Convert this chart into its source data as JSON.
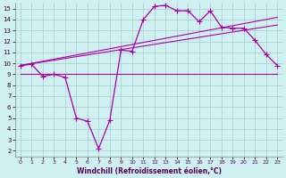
{
  "bg_color": "#cff0f0",
  "grid_color": "#aacccc",
  "line_color": "#aa00aa",
  "xlabel": "Windchill (Refroidissement éolien,°C)",
  "xlim": [
    -0.5,
    23.5
  ],
  "ylim": [
    1.5,
    15.5
  ],
  "xticks": [
    0,
    1,
    2,
    3,
    4,
    5,
    6,
    7,
    8,
    9,
    10,
    11,
    12,
    13,
    14,
    15,
    16,
    17,
    18,
    19,
    20,
    21,
    22,
    23
  ],
  "yticks": [
    2,
    3,
    4,
    5,
    6,
    7,
    8,
    9,
    10,
    11,
    12,
    13,
    14,
    15
  ],
  "flat_line_x": [
    0,
    23
  ],
  "flat_line_y": [
    9.0,
    9.0
  ],
  "reg_line1_x": [
    0,
    23
  ],
  "reg_line1_y": [
    9.8,
    13.5
  ],
  "reg_line2_x": [
    0,
    23
  ],
  "reg_line2_y": [
    9.8,
    14.2
  ],
  "curve_x": [
    0,
    1,
    2,
    3,
    4,
    5,
    6,
    7,
    8,
    9,
    10,
    11,
    12,
    13,
    14,
    15,
    16,
    17,
    18,
    19,
    20,
    21,
    22,
    23
  ],
  "curve_y": [
    9.8,
    9.9,
    8.8,
    9.0,
    8.7,
    5.0,
    4.7,
    2.2,
    4.8,
    11.2,
    11.1,
    14.0,
    15.2,
    15.3,
    14.8,
    14.8,
    13.8,
    14.8,
    13.3,
    13.2,
    13.2,
    12.1,
    10.8,
    9.8
  ],
  "marker": "+",
  "markersize": 4,
  "lw_curve": 0.9,
  "lw_reg": 0.8,
  "lw_flat": 0.8
}
